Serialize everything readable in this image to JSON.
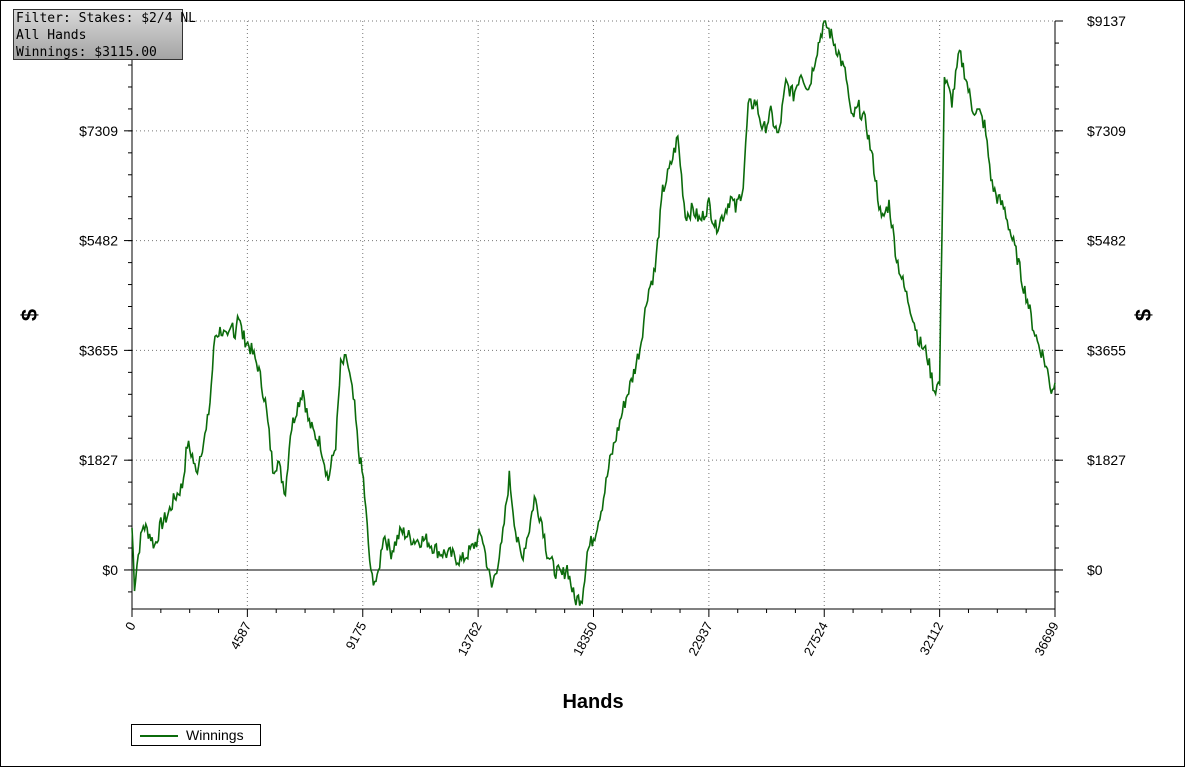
{
  "info_box": {
    "filter": "Filter: Stakes: $2/4 NL",
    "hands": "All Hands",
    "winnings": "Winnings: $3115.00"
  },
  "chart_data": {
    "type": "line",
    "xlabel": "Hands",
    "ylabel": "$",
    "ylabel_right": "$",
    "xlim": [
      0,
      36699
    ],
    "ylim": [
      -650,
      9137
    ],
    "x_ticks": [
      0,
      4587,
      9175,
      13762,
      18350,
      22937,
      27524,
      32112,
      36699
    ],
    "x_tick_labels": [
      "0",
      "4587",
      "9175",
      "13762",
      "18350",
      "22937",
      "27524",
      "32112",
      "36699"
    ],
    "y_ticks": [
      0,
      1827,
      3655,
      5482,
      7309,
      9137
    ],
    "y_tick_labels": [
      "$0",
      "$1827",
      "$3655",
      "$5482",
      "$7309",
      "$9137"
    ],
    "grid": true,
    "legend_position": "bottom-left",
    "series": [
      {
        "name": "Winnings",
        "color": "#0b6b0b",
        "x": [
          0,
          100,
          200,
          300,
          450,
          700,
          900,
          1150,
          1400,
          1700,
          2000,
          2200,
          2400,
          2550,
          2750,
          2950,
          3100,
          3300,
          3550,
          3800,
          4000,
          4100,
          4200,
          4400,
          4700,
          5000,
          5300,
          5600,
          5800,
          6100,
          6300,
          6550,
          6800,
          7000,
          7200,
          7500,
          7800,
          8100,
          8300,
          8550,
          8850,
          9000,
          9200,
          9500,
          9750,
          10000,
          10300,
          10700,
          11200,
          11700,
          12200,
          12700,
          13100,
          13500,
          13900,
          14300,
          14700,
          15000,
          15300,
          15500,
          15800,
          16000,
          16300,
          16500,
          16800,
          17100,
          17300,
          17600,
          17900,
          18100,
          18400,
          18700,
          19000,
          19300,
          19600,
          19900,
          20200,
          20500,
          20800,
          21100,
          21400,
          21700,
          22000,
          22300,
          22600,
          22937,
          23200,
          23500,
          23800,
          24000,
          24300,
          24500,
          24800,
          25100,
          25400,
          25700,
          26000,
          26300,
          26600,
          26900,
          27200,
          27524,
          27800,
          28100,
          28400,
          28600,
          28900,
          29200,
          29500,
          29800,
          30100,
          30400,
          30700,
          31000,
          31300,
          31600,
          31900,
          32112,
          32300,
          32600,
          32900,
          33100,
          33400,
          33700,
          33900,
          34200,
          34400,
          34700,
          35000,
          35200,
          35400,
          35600,
          35800,
          36000,
          36200,
          36400,
          36550,
          36699
        ],
        "y": [
          700,
          -250,
          100,
          400,
          750,
          600,
          400,
          750,
          900,
          1200,
          1400,
          2100,
          1900,
          1600,
          2000,
          2300,
          2800,
          3900,
          4000,
          3800,
          4100,
          3900,
          4300,
          3900,
          3700,
          3400,
          2800,
          1700,
          1800,
          1300,
          2300,
          2700,
          3000,
          2500,
          2300,
          2100,
          1500,
          2100,
          3400,
          3500,
          2700,
          2000,
          1500,
          -100,
          -200,
          600,
          300,
          650,
          500,
          500,
          300,
          250,
          150,
          350,
          600,
          -300,
          400,
          1550,
          500,
          200,
          700,
          1200,
          800,
          300,
          0,
          -100,
          50,
          -500,
          -450,
          300,
          600,
          1100,
          1800,
          2300,
          2800,
          3200,
          3700,
          4600,
          5000,
          6300,
          6700,
          7200,
          5900,
          6000,
          5800,
          6100,
          5700,
          5900,
          6200,
          6000,
          6400,
          7700,
          7800,
          7300,
          7600,
          7200,
          8100,
          7900,
          8300,
          8000,
          8600,
          9137,
          8900,
          8600,
          8200,
          7500,
          7700,
          7400,
          6700,
          5800,
          6100,
          5200,
          4700,
          4300,
          3800,
          3600,
          3000,
          3115,
          8200,
          7800,
          8600,
          8300,
          7700,
          7600,
          7400,
          6400,
          6200,
          6000,
          5500,
          5200,
          4800,
          4500,
          4100,
          3800,
          3600,
          3300,
          3000,
          3115
        ]
      }
    ]
  },
  "legend": {
    "label": "Winnings"
  }
}
